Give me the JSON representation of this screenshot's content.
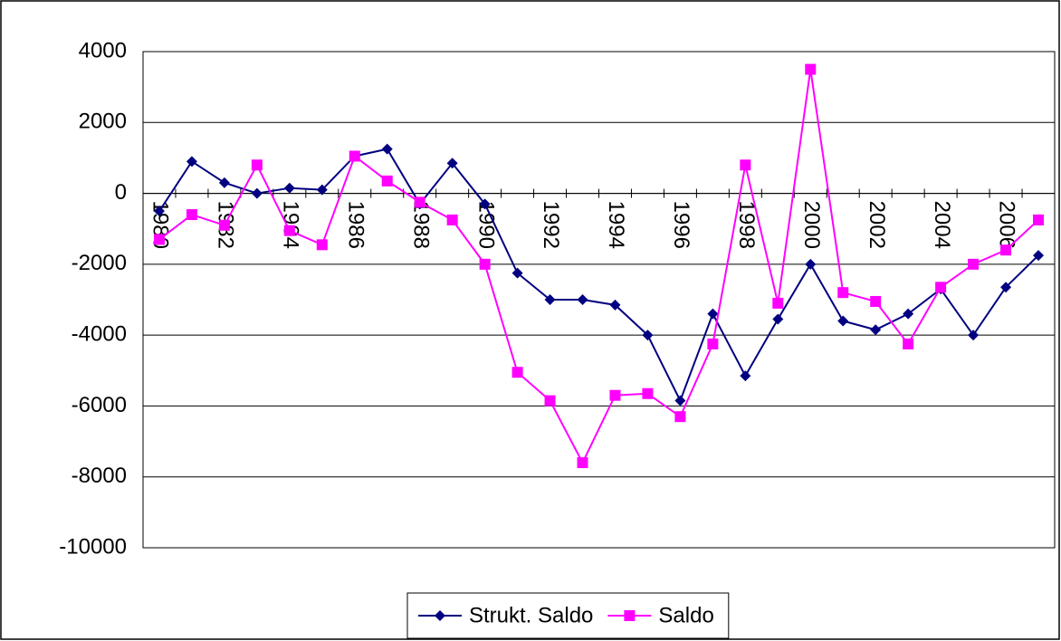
{
  "chart_data": {
    "type": "line",
    "categories": [
      "1980",
      null,
      "1982",
      null,
      "1984",
      null,
      "1986",
      null,
      "1988",
      null,
      "1990",
      null,
      "1992",
      null,
      "1994",
      null,
      "1996",
      null,
      "1998",
      null,
      "2000",
      null,
      "2002",
      null,
      "2004",
      null,
      "2006",
      null
    ],
    "series": [
      {
        "name": "Strukt. Saldo",
        "color": "#000080",
        "marker": "diamond",
        "values": [
          -500,
          900,
          300,
          0,
          150,
          100,
          1050,
          1250,
          -300,
          850,
          -300,
          -2250,
          -3000,
          -3000,
          -3150,
          -4000,
          -5850,
          -3400,
          -5150,
          -3550,
          -2000,
          -3600,
          -3850,
          -3400,
          -2700,
          -4000,
          -2650,
          -1750
        ]
      },
      {
        "name": "Saldo",
        "color": "#ff00ff",
        "marker": "square",
        "values": [
          -1300,
          -600,
          -900,
          800,
          -1050,
          -1450,
          1050,
          350,
          -250,
          -750,
          -2000,
          -5050,
          -5850,
          -7600,
          -5700,
          -5650,
          -6300,
          -4250,
          800,
          -3100,
          3500,
          -2800,
          -3050,
          -4250,
          -2650,
          -2000,
          -1600,
          -750
        ]
      }
    ],
    "ylim": [
      -10000,
      4000
    ],
    "yticks": [
      -10000,
      -8000,
      -6000,
      -4000,
      -2000,
      0,
      2000,
      4000
    ],
    "grid": true,
    "legend": "bottom"
  }
}
